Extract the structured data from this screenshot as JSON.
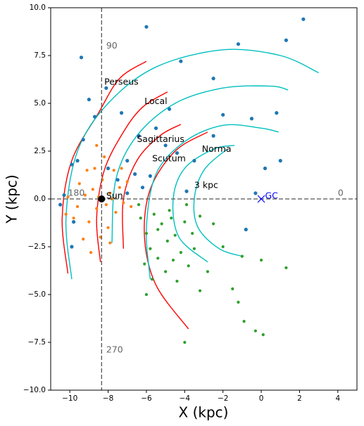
{
  "chart_data": {
    "type": "scatter",
    "xlabel": "X (kpc)",
    "ylabel": "Y (kpc)",
    "xlim": [
      -11,
      5
    ],
    "ylim": [
      -10,
      10
    ],
    "xticks": [
      {
        "value": -10,
        "label": "−10"
      },
      {
        "value": -8,
        "label": "−8"
      },
      {
        "value": -6,
        "label": "−6"
      },
      {
        "value": -4,
        "label": "−4"
      },
      {
        "value": -2,
        "label": "−2"
      },
      0,
      2,
      4
    ],
    "yticks": [
      {
        "value": -10,
        "label": "−10.0"
      },
      {
        "value": -7.5,
        "label": "−7.5"
      },
      {
        "value": -5,
        "label": "−5.0"
      },
      {
        "value": -2.5,
        "label": "−2.5"
      },
      {
        "value": 0,
        "label": "0.0"
      },
      {
        "value": 2.5,
        "label": "2.5"
      },
      {
        "value": 5,
        "label": "5.0"
      },
      {
        "value": 7.5,
        "label": "7.5"
      },
      {
        "value": 10,
        "label": "10.0"
      }
    ],
    "series": [
      {
        "color": "#1f77b4",
        "x": [
          -10.3,
          -10.5,
          -9.9,
          -9.6,
          -9.3,
          -9.8,
          -9.9,
          -8.0,
          -7.5,
          -7.0,
          -6.6,
          -6.2,
          -5.8,
          -7.0,
          -6.4,
          -5.5,
          -5.0,
          -4.4,
          -3.5,
          -2.5,
          -2.0,
          -1.2,
          -6.0,
          -9.4,
          -8.1,
          -7.3,
          -4.2,
          -2.5,
          0.2,
          1.0,
          -0.8,
          -0.3,
          2.2,
          1.3,
          -0.5,
          0.8,
          -3.9,
          -4.8,
          -8.7,
          -9.0
        ],
        "y": [
          0.2,
          -0.3,
          1.8,
          2.0,
          3.1,
          -1.2,
          -2.5,
          1.6,
          1.0,
          0.3,
          1.3,
          0.6,
          1.2,
          2.0,
          3.3,
          3.7,
          2.8,
          2.4,
          2.0,
          3.3,
          4.4,
          8.1,
          9.0,
          7.4,
          5.8,
          4.5,
          7.2,
          6.3,
          1.6,
          2.0,
          -1.6,
          0.3,
          9.4,
          8.3,
          4.2,
          4.5,
          0.4,
          4.7,
          4.3,
          5.2
        ]
      },
      {
        "color": "#ff7f0e",
        "x": [
          -8.8,
          -8.6,
          -9.2,
          -9.0,
          -8.3,
          -7.9,
          -7.6,
          -8.0,
          -8.7,
          -9.5,
          -9.6,
          -8.4,
          -7.4,
          -7.2,
          -7.7,
          -8.2,
          -9.3,
          -10.1,
          -8.9,
          -7.9,
          -7.0,
          -9.1,
          -8.5,
          -8.1,
          -7.8,
          -9.8,
          -10.2,
          -8.6,
          -7.3,
          -6.8
        ],
        "y": [
          0.5,
          -0.5,
          0.2,
          -1.2,
          1.0,
          0.3,
          -0.7,
          -1.5,
          1.6,
          0.8,
          -0.4,
          -2.0,
          0.6,
          -0.2,
          1.5,
          2.2,
          -2.1,
          0.1,
          -2.8,
          -2.3,
          0.9,
          1.5,
          0.1,
          -0.3,
          0.0,
          -1.0,
          -0.8,
          2.8,
          1.6,
          -0.4
        ]
      },
      {
        "color": "#2ca02c",
        "x": [
          -6.3,
          -6.0,
          -5.6,
          -5.2,
          -4.8,
          -4.5,
          -4.0,
          -3.6,
          -3.2,
          -5.8,
          -5.4,
          -4.9,
          -4.2,
          -3.5,
          -6.1,
          -5.0,
          -4.4,
          -3.8,
          -2.8,
          -2.0,
          -1.0,
          0.0,
          1.3,
          -1.5,
          -0.9,
          -0.3,
          0.1,
          -4.0,
          -6.0,
          -5.4,
          -4.7,
          -3.9,
          -6.4,
          -4.6,
          -2.5,
          -1.2,
          -3.2,
          -5.7
        ],
        "y": [
          -1.0,
          -1.8,
          -0.8,
          -1.3,
          -0.6,
          -1.9,
          -1.2,
          -1.8,
          -0.9,
          -2.6,
          -3.1,
          -2.2,
          -2.8,
          -2.6,
          -3.4,
          -3.8,
          -4.3,
          -3.5,
          -3.8,
          -2.5,
          -3.0,
          -3.2,
          -3.6,
          -4.7,
          -6.4,
          -6.9,
          -7.1,
          -7.5,
          -5.0,
          -1.6,
          -1.0,
          -0.3,
          -0.3,
          -3.2,
          -1.3,
          -5.4,
          -4.8,
          -4.2
        ]
      }
    ],
    "lines": [
      {
        "color": "red",
        "x": [
          -10.1,
          -10.4,
          -9.9,
          -8.5,
          -7.4,
          -6.0
        ],
        "y": [
          -3.9,
          -1.0,
          2.0,
          4.5,
          6.3,
          7.2
        ]
      },
      {
        "color": "red",
        "x": [
          -8.4,
          -8.6,
          -8.2,
          -7.2,
          -6.2,
          -4.9
        ],
        "y": [
          -3.3,
          -1.0,
          1.5,
          3.5,
          4.8,
          5.6
        ]
      },
      {
        "color": "red",
        "x": [
          -7.2,
          -7.2,
          -6.5,
          -5.3,
          -4.2
        ],
        "y": [
          -2.6,
          0.0,
          2.0,
          3.3,
          3.9
        ]
      },
      {
        "color": "red",
        "x": [
          -3.8,
          -5.5,
          -6.1,
          -5.8,
          -4.5,
          -2.8
        ],
        "y": [
          -6.8,
          -4.5,
          -2.0,
          0.5,
          2.5,
          3.5
        ]
      },
      {
        "color": "#00bfbf",
        "x": [
          -9.9,
          -10.2,
          -9.6,
          -8.0,
          -5.5,
          -2.0,
          1.0,
          3.0
        ],
        "y": [
          -4.2,
          -1.0,
          2.5,
          5.0,
          6.9,
          7.8,
          7.5,
          6.6
        ]
      },
      {
        "color": "#00bfbf",
        "x": [
          -7.8,
          -7.6,
          -6.5,
          -4.5,
          -2.0,
          0.5,
          1.4
        ],
        "y": [
          -2.3,
          1.0,
          3.3,
          5.0,
          5.8,
          5.9,
          5.7
        ]
      },
      {
        "color": "#00bfbf",
        "x": [
          -5.8,
          -6.0,
          -5.5,
          -4.0,
          -2.0,
          0.0,
          0.9
        ],
        "y": [
          -4.2,
          -1.5,
          1.3,
          3.0,
          3.85,
          3.7,
          3.5
        ]
      },
      {
        "color": "#00bfbf",
        "x": [
          -2.8,
          -4.3,
          -4.6,
          -4.0,
          -2.5,
          -1.4
        ],
        "y": [
          -3.3,
          -2.0,
          0.0,
          1.6,
          2.6,
          2.8
        ]
      },
      {
        "color": "#00bfbf",
        "x": [
          -1.0,
          -2.2,
          -3.3,
          -3.5,
          -3.0,
          -1.8
        ],
        "y": [
          -3.0,
          -2.6,
          -1.5,
          0.0,
          1.5,
          2.6
        ]
      }
    ],
    "sun": {
      "x": -8.34,
      "y": 0
    },
    "gc": {
      "x": 0,
      "y": 0
    },
    "annotations": [
      {
        "text": "Perseus",
        "x": -8.2,
        "y": 6.1,
        "color": "#000"
      },
      {
        "text": "Local",
        "x": -6.1,
        "y": 5.1,
        "color": "#000"
      },
      {
        "text": "Sagittarius",
        "x": -6.5,
        "y": 3.1,
        "color": "#000"
      },
      {
        "text": "Scutum",
        "x": -5.7,
        "y": 2.1,
        "color": "#000"
      },
      {
        "text": "Norma",
        "x": -3.1,
        "y": 2.6,
        "color": "#000"
      },
      {
        "text": "3 kpc",
        "x": -3.5,
        "y": 0.7,
        "color": "#000"
      },
      {
        "text": "Sun",
        "x": -8.1,
        "y": 0.15,
        "color": "#000"
      },
      {
        "text": "GC",
        "x": 0.2,
        "y": 0.15,
        "color": "blue"
      },
      {
        "text": "90",
        "x": -8.1,
        "y": 8.0,
        "color": "#666"
      },
      {
        "text": "270",
        "x": -8.1,
        "y": -7.9,
        "color": "#666"
      },
      {
        "text": "180",
        "x": -10.1,
        "y": 0.3,
        "color": "#666"
      },
      {
        "text": "0",
        "x": 4.0,
        "y": 0.3,
        "color": "#666"
      }
    ]
  }
}
